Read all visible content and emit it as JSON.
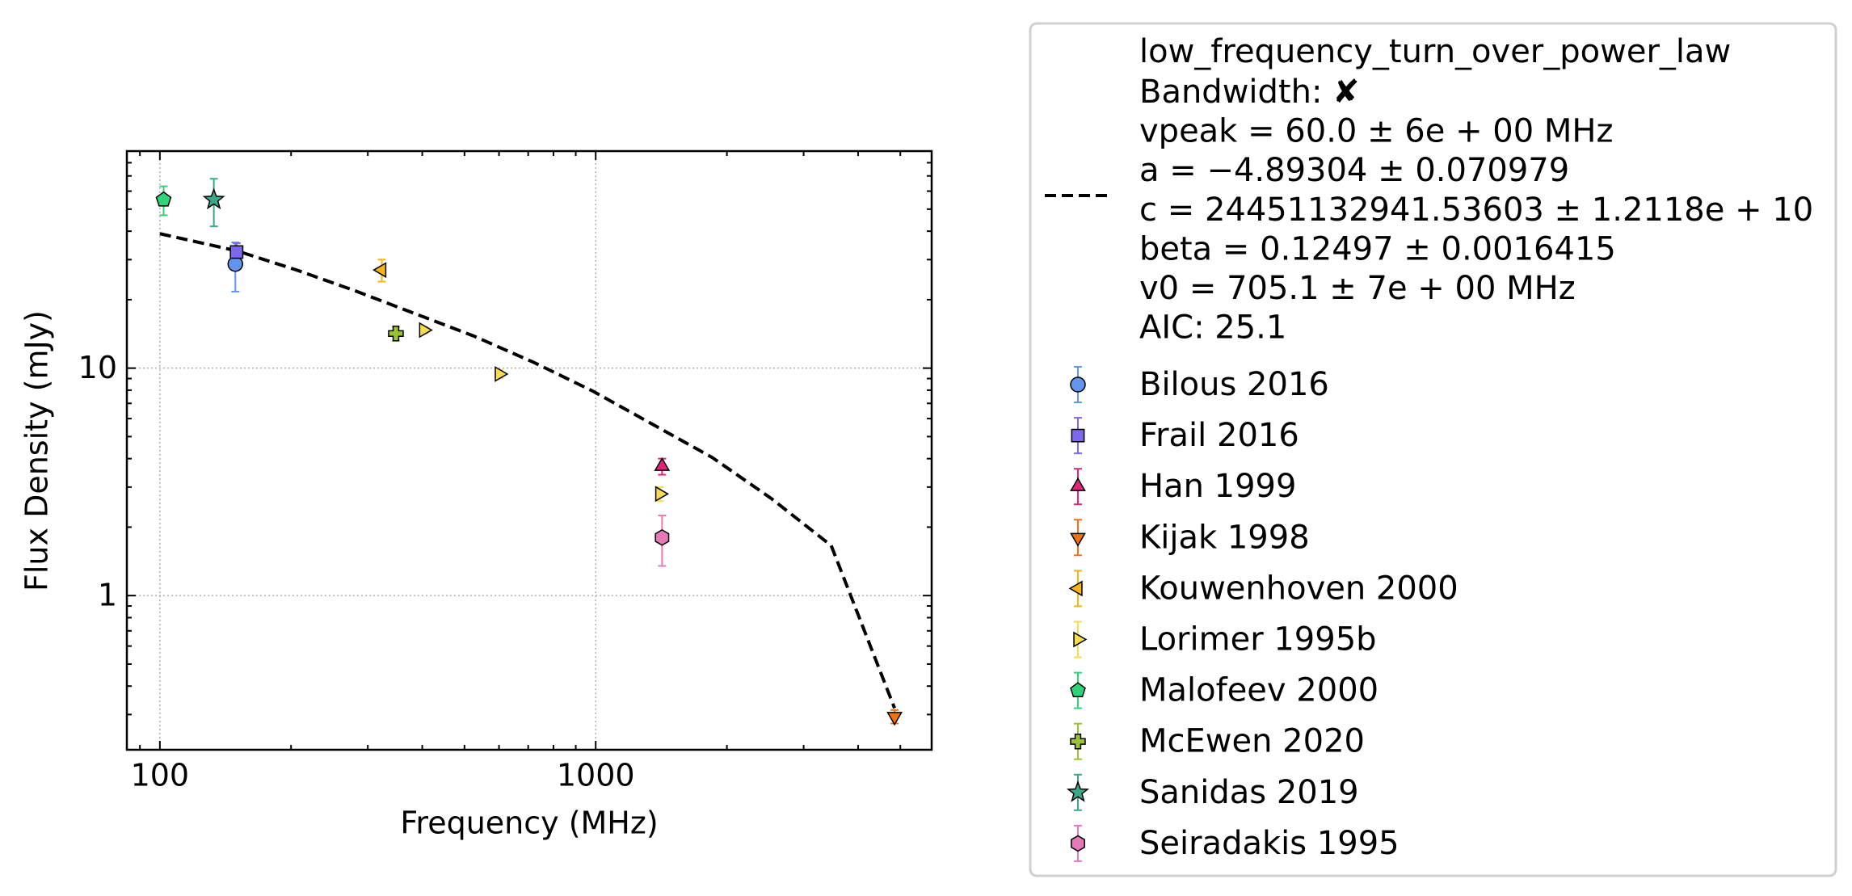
{
  "chart_data": {
    "type": "scatter",
    "x_label": "Frequency (MHz)",
    "y_label": "Flux Density (mJy)",
    "log_x": true,
    "log_y": true,
    "grid": true,
    "legend": "outside right",
    "xlim": [
      84,
      5900
    ],
    "ylim": [
      0.21,
      90
    ],
    "xticks": [
      100,
      1000
    ],
    "yticks": [
      1,
      10
    ],
    "xminor_ticks": [
      90,
      200,
      300,
      400,
      500,
      600,
      700,
      800,
      900,
      2000,
      3000,
      4000,
      5000
    ],
    "yminor_ticks": [
      0.3,
      0.4,
      0.5,
      0.6,
      0.7,
      0.8,
      0.9,
      2,
      3,
      4,
      5,
      6,
      7,
      8,
      9,
      20,
      30,
      40,
      50,
      60,
      70,
      80
    ],
    "fit": {
      "name": "low_frequency_turn_over_power_law",
      "label_lines": [
        "Bandwidth: ✘",
        "vpeak = 60.0 ± 6e + 00 MHz",
        "a = −4.89304 ± 0.070979",
        "c = 24451132941.53603 ± 1.2118e + 10",
        "beta = 0.12497 ± 0.0016415",
        "v0 = 705.1 ± 7e + 00 MHz",
        "AIC: 25.1"
      ],
      "color": "#000000",
      "x": [
        100,
        150,
        206,
        282,
        527,
        721,
        988,
        1850,
        2530,
        3470,
        4850
      ],
      "values": [
        39,
        32.8,
        27,
        21.8,
        13.8,
        10.6,
        7.9,
        4.05,
        2.67,
        1.66,
        0.32
      ]
    },
    "series": [
      {
        "name": "Bilous 2016",
        "color": "#6495ed",
        "marker": "circle",
        "x": [
          149
        ],
        "values": [
          28.7
        ],
        "errors": [
          7
        ]
      },
      {
        "name": "Frail 2016",
        "color": "#7b68ee",
        "marker": "square",
        "x": [
          150
        ],
        "values": [
          32.4
        ],
        "errors": [
          3
        ]
      },
      {
        "name": "Han 1999",
        "color": "#e0267a",
        "marker": "triangle-up",
        "x": [
          1420
        ],
        "values": [
          3.7
        ],
        "errors": [
          0.3
        ]
      },
      {
        "name": "Kijak 1998",
        "color": "#f5700f",
        "marker": "triangle-down",
        "x": [
          4850
        ],
        "values": [
          0.294
        ],
        "errors": [
          0.02
        ]
      },
      {
        "name": "Kouwenhoven 2000",
        "color": "#f5b512",
        "marker": "triangle-left",
        "x": [
          323
        ],
        "values": [
          27
        ],
        "errors": [
          3
        ]
      },
      {
        "name": "Lorimer 1995b",
        "color": "#f5dc50",
        "marker": "triangle-right",
        "x": [
          403,
          601,
          1403
        ],
        "values": [
          14.7,
          9.42,
          2.8
        ],
        "errors": [
          0.5,
          0.4,
          0.2
        ]
      },
      {
        "name": "Malofeev 2000",
        "color": "#2ed47a",
        "marker": "pentagon",
        "x": [
          102
        ],
        "values": [
          55
        ],
        "errors": [
          8
        ]
      },
      {
        "name": "McEwen 2020",
        "color": "#9ac232",
        "marker": "plus",
        "x": [
          348
        ],
        "values": [
          14.2
        ],
        "errors": [
          1
        ]
      },
      {
        "name": "Sanidas 2019",
        "color": "#3aa88a",
        "marker": "star",
        "x": [
          133
        ],
        "values": [
          55
        ],
        "errors": [
          13
        ]
      },
      {
        "name": "Seiradakis 1995",
        "color": "#e67ab8",
        "marker": "hexagon",
        "x": [
          1420
        ],
        "values": [
          1.8
        ],
        "errors": [
          0.45
        ]
      }
    ]
  }
}
